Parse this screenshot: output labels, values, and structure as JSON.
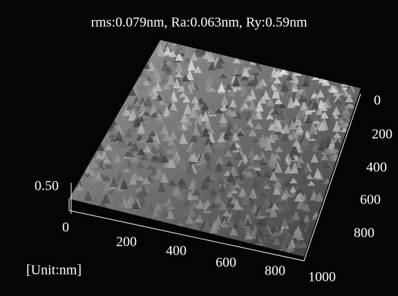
{
  "title": "rms:0.079nm, Ra:0.063nm, Ry:0.59nm",
  "unit_label": "[Unit:nm]",
  "z_axis": {
    "ticks": [
      "0.50"
    ]
  },
  "x_axis": {
    "ticks": [
      "0",
      "200",
      "400",
      "600",
      "800"
    ]
  },
  "y_axis": {
    "ticks": [
      "0",
      "200",
      "400",
      "600",
      "800",
      "1000"
    ]
  }
}
